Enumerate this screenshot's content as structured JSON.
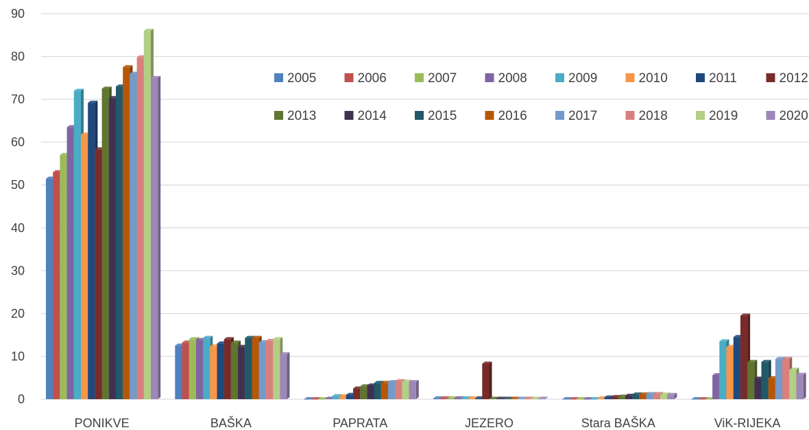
{
  "chart_data": {
    "type": "bar",
    "categories": [
      "PONIKVE",
      "BAŠKA",
      "PAPRATA",
      "JEZERO",
      "Stara BAŠKA",
      "ViK-RIJEKA"
    ],
    "ylim": [
      0,
      90
    ],
    "yticks": [
      0,
      10,
      20,
      30,
      40,
      50,
      60,
      70,
      80,
      90
    ],
    "grid": true,
    "legend_position": "top-right",
    "series": [
      {
        "name": "2005",
        "color": "#4F81BD",
        "values": [
          51.5,
          12.5,
          0,
          0.2,
          0,
          0
        ]
      },
      {
        "name": "2006",
        "color": "#C0504D",
        "values": [
          53,
          13.2,
          0,
          0.2,
          0,
          0
        ]
      },
      {
        "name": "2007",
        "color": "#9BBB59",
        "values": [
          57,
          14,
          0,
          0.2,
          0,
          0
        ]
      },
      {
        "name": "2008",
        "color": "#8064A2",
        "values": [
          63.5,
          13.8,
          0.1,
          0.2,
          0,
          5.6
        ]
      },
      {
        "name": "2009",
        "color": "#4BACC6",
        "values": [
          72,
          14.3,
          0.7,
          0.2,
          0,
          13.5
        ]
      },
      {
        "name": "2010",
        "color": "#F79646",
        "values": [
          61.8,
          12.3,
          0.7,
          0.2,
          0.2,
          12.2
        ]
      },
      {
        "name": "2011",
        "color": "#1F497D",
        "values": [
          69.2,
          13,
          1,
          0.2,
          0.4,
          14.5
        ]
      },
      {
        "name": "2012",
        "color": "#772C2A",
        "values": [
          58.3,
          14,
          2.5,
          8.3,
          0.5,
          19.5
        ]
      },
      {
        "name": "2013",
        "color": "#5F7530",
        "values": [
          72.5,
          13.2,
          3,
          0.1,
          0.6,
          8.7
        ]
      },
      {
        "name": "2014",
        "color": "#403152",
        "values": [
          70.3,
          12.2,
          3.2,
          0.1,
          0.8,
          4.8
        ]
      },
      {
        "name": "2015",
        "color": "#215968",
        "values": [
          73,
          14.3,
          3.8,
          0.1,
          1.1,
          8.7
        ]
      },
      {
        "name": "2016",
        "color": "#B65708",
        "values": [
          77.5,
          14.3,
          3.8,
          0.1,
          1.1,
          4.9
        ]
      },
      {
        "name": "2017",
        "color": "#729ACA",
        "values": [
          76,
          13.3,
          4,
          0.1,
          1.2,
          9.4
        ]
      },
      {
        "name": "2018",
        "color": "#D9807D",
        "values": [
          79.8,
          13.6,
          4.2,
          0.1,
          1.2,
          9.4
        ]
      },
      {
        "name": "2019",
        "color": "#B3CE85",
        "values": [
          86,
          14,
          4.1,
          0.1,
          1.1,
          6.9
        ]
      },
      {
        "name": "2020",
        "color": "#9D87B8",
        "values": [
          75,
          10.5,
          4,
          0.1,
          1,
          5.7
        ]
      }
    ]
  }
}
